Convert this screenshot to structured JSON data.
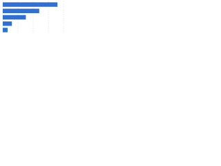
{
  "chart_data": {
    "type": "barh",
    "categories": [
      null,
      null,
      null,
      null,
      null
    ],
    "values": [
      90,
      60,
      38,
      15,
      8
    ],
    "color": "#2f6fd6",
    "xlim": [
      0,
      100
    ],
    "xticks": [
      0,
      25,
      50,
      75,
      100
    ],
    "grid": true
  }
}
